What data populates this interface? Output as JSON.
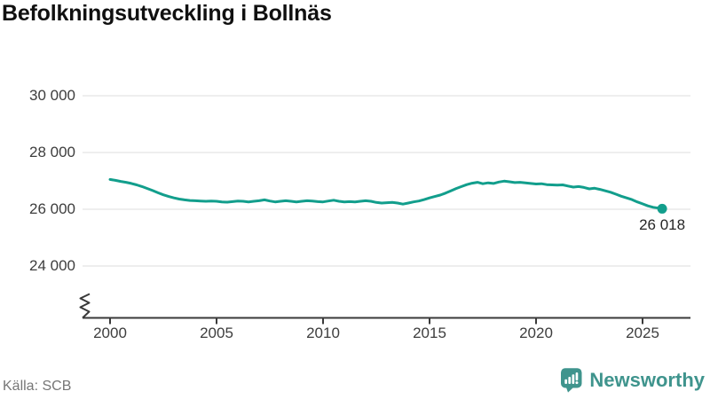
{
  "title": "Befolkningsutveckling i Bollnäs",
  "source": "Källa: SCB",
  "branding": {
    "name": "Newsworthy"
  },
  "colors": {
    "line": "#129e8c",
    "grid": "#dcdcdc",
    "axis": "#3a3a3a",
    "logo_teal": "#3f948d"
  },
  "chart_data": {
    "type": "line",
    "title": "Befolkningsutveckling i Bollnäs",
    "xlabel": "",
    "ylabel": "",
    "grid": "horizontal",
    "axis_break_symbol": true,
    "xlim": [
      1998.8,
      2027.3
    ],
    "ylim": [
      24000,
      30000
    ],
    "x_tick_values": [
      2000,
      2005,
      2010,
      2015,
      2020,
      2025
    ],
    "x_tick_labels": [
      "2000",
      "2005",
      "2010",
      "2015",
      "2020",
      "2025"
    ],
    "y_tick_values": [
      30000,
      28000,
      26000,
      24000
    ],
    "y_tick_labels": [
      "30 000",
      "28 000",
      "26 000",
      "24 000"
    ],
    "last_point": {
      "x": 2025.92,
      "y": 26018,
      "label": "26 018"
    },
    "points": [
      [
        2000.0,
        27050
      ],
      [
        2000.25,
        27020
      ],
      [
        2000.5,
        26980
      ],
      [
        2000.75,
        26950
      ],
      [
        2001.0,
        26910
      ],
      [
        2001.25,
        26860
      ],
      [
        2001.5,
        26800
      ],
      [
        2001.75,
        26730
      ],
      [
        2002.0,
        26660
      ],
      [
        2002.25,
        26580
      ],
      [
        2002.5,
        26510
      ],
      [
        2002.75,
        26450
      ],
      [
        2003.0,
        26400
      ],
      [
        2003.25,
        26360
      ],
      [
        2003.5,
        26330
      ],
      [
        2003.75,
        26310
      ],
      [
        2004.0,
        26300
      ],
      [
        2004.25,
        26290
      ],
      [
        2004.5,
        26280
      ],
      [
        2004.75,
        26290
      ],
      [
        2005.0,
        26280
      ],
      [
        2005.25,
        26260
      ],
      [
        2005.5,
        26250
      ],
      [
        2005.75,
        26270
      ],
      [
        2006.0,
        26290
      ],
      [
        2006.25,
        26280
      ],
      [
        2006.5,
        26260
      ],
      [
        2006.75,
        26280
      ],
      [
        2007.0,
        26300
      ],
      [
        2007.25,
        26330
      ],
      [
        2007.5,
        26290
      ],
      [
        2007.75,
        26260
      ],
      [
        2008.0,
        26280
      ],
      [
        2008.25,
        26300
      ],
      [
        2008.5,
        26280
      ],
      [
        2008.75,
        26260
      ],
      [
        2009.0,
        26280
      ],
      [
        2009.25,
        26300
      ],
      [
        2009.5,
        26290
      ],
      [
        2009.75,
        26270
      ],
      [
        2010.0,
        26260
      ],
      [
        2010.25,
        26290
      ],
      [
        2010.5,
        26320
      ],
      [
        2010.75,
        26280
      ],
      [
        2011.0,
        26260
      ],
      [
        2011.25,
        26270
      ],
      [
        2011.5,
        26260
      ],
      [
        2011.75,
        26280
      ],
      [
        2012.0,
        26300
      ],
      [
        2012.25,
        26280
      ],
      [
        2012.5,
        26240
      ],
      [
        2012.75,
        26220
      ],
      [
        2013.0,
        26230
      ],
      [
        2013.25,
        26240
      ],
      [
        2013.5,
        26220
      ],
      [
        2013.75,
        26180
      ],
      [
        2014.0,
        26220
      ],
      [
        2014.25,
        26260
      ],
      [
        2014.5,
        26290
      ],
      [
        2014.75,
        26340
      ],
      [
        2015.0,
        26400
      ],
      [
        2015.25,
        26450
      ],
      [
        2015.5,
        26500
      ],
      [
        2015.75,
        26570
      ],
      [
        2016.0,
        26650
      ],
      [
        2016.25,
        26730
      ],
      [
        2016.5,
        26800
      ],
      [
        2016.75,
        26870
      ],
      [
        2017.0,
        26920
      ],
      [
        2017.25,
        26950
      ],
      [
        2017.5,
        26900
      ],
      [
        2017.75,
        26930
      ],
      [
        2018.0,
        26910
      ],
      [
        2018.25,
        26960
      ],
      [
        2018.5,
        26990
      ],
      [
        2018.75,
        26970
      ],
      [
        2019.0,
        26940
      ],
      [
        2019.25,
        26950
      ],
      [
        2019.5,
        26930
      ],
      [
        2019.75,
        26910
      ],
      [
        2020.0,
        26890
      ],
      [
        2020.25,
        26900
      ],
      [
        2020.5,
        26870
      ],
      [
        2020.75,
        26860
      ],
      [
        2021.0,
        26850
      ],
      [
        2021.25,
        26860
      ],
      [
        2021.5,
        26820
      ],
      [
        2021.75,
        26780
      ],
      [
        2022.0,
        26800
      ],
      [
        2022.25,
        26770
      ],
      [
        2022.5,
        26720
      ],
      [
        2022.75,
        26740
      ],
      [
        2023.0,
        26700
      ],
      [
        2023.25,
        26650
      ],
      [
        2023.5,
        26600
      ],
      [
        2023.75,
        26530
      ],
      [
        2024.0,
        26460
      ],
      [
        2024.25,
        26400
      ],
      [
        2024.5,
        26340
      ],
      [
        2024.75,
        26260
      ],
      [
        2025.0,
        26190
      ],
      [
        2025.25,
        26120
      ],
      [
        2025.5,
        26070
      ],
      [
        2025.75,
        26040
      ],
      [
        2025.92,
        26018
      ]
    ]
  }
}
